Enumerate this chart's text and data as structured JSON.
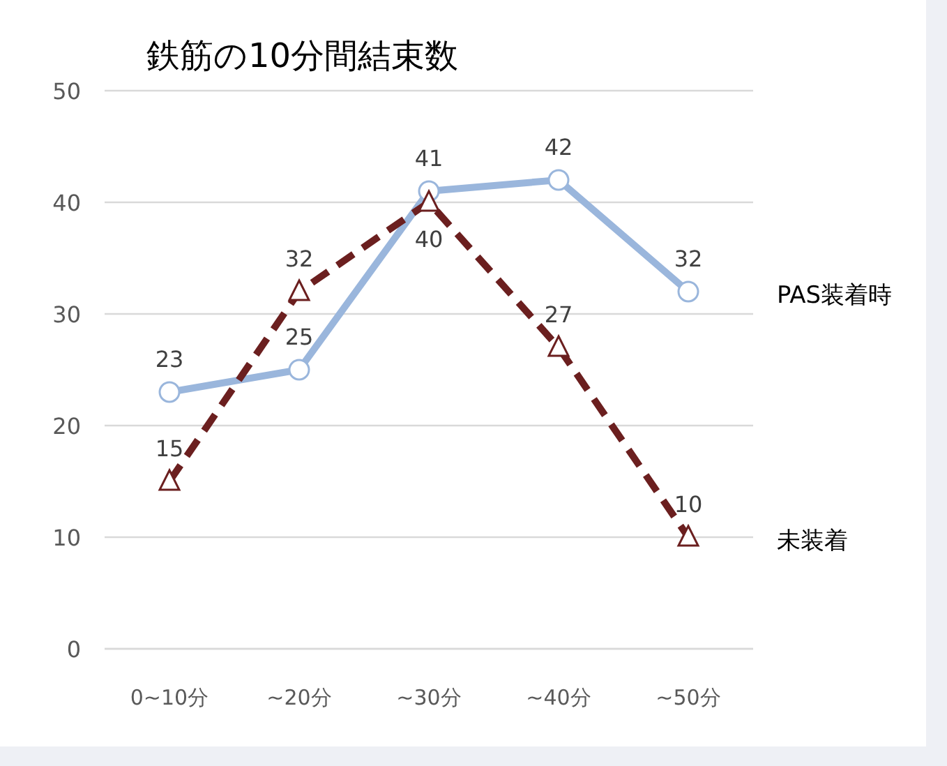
{
  "chart_data": {
    "type": "line",
    "title": "鉄筋の10分間結束数",
    "categories": [
      "0~10分",
      "~20分",
      "~30分",
      "~40分",
      "~50分"
    ],
    "series": [
      {
        "name": "PAS装着時",
        "color": "#9ab6dc",
        "values": [
          23,
          25,
          41,
          42,
          32
        ],
        "marker": "circle",
        "line_style": "solid"
      },
      {
        "name": "未装着",
        "color": "#6b1f1f",
        "values": [
          15,
          32,
          40,
          27,
          10
        ],
        "marker": "triangle",
        "line_style": "dashed"
      }
    ],
    "ylim": [
      0,
      50
    ],
    "yticks": [
      0,
      10,
      20,
      30,
      40,
      50
    ],
    "grid": "y",
    "data_labels": true,
    "legend": "right"
  }
}
